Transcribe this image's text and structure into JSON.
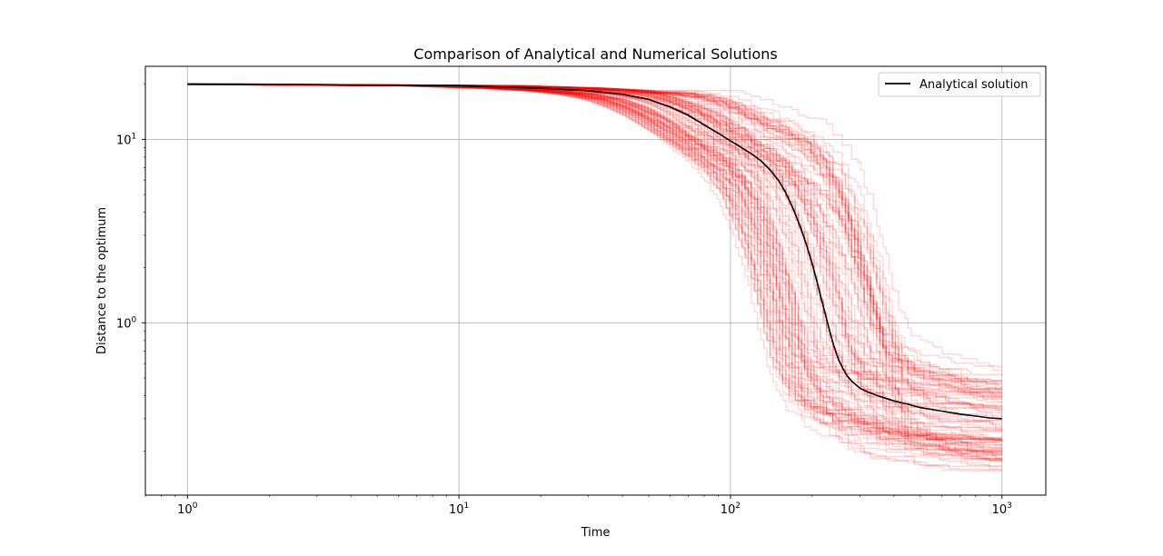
{
  "chart_data": {
    "type": "line",
    "title": "Comparison of Analytical and Numerical Solutions",
    "xlabel": "Time",
    "ylabel": "Distance to the optimum",
    "xscale": "log",
    "yscale": "log",
    "xlim": [
      0.7,
      1450
    ],
    "ylim": [
      0.115,
      25
    ],
    "x_ticks": [
      {
        "value": 1,
        "base": "10",
        "exp": "0"
      },
      {
        "value": 10,
        "base": "10",
        "exp": "1"
      },
      {
        "value": 100,
        "base": "10",
        "exp": "2"
      },
      {
        "value": 1000,
        "base": "10",
        "exp": "3"
      }
    ],
    "y_ticks": [
      {
        "value": 1,
        "base": "10",
        "exp": "0"
      },
      {
        "value": 10,
        "base": "10",
        "exp": "1"
      }
    ],
    "grid": true,
    "legend": {
      "position": "top-right",
      "entries": [
        {
          "label": "Analytical solution",
          "color": "#000000"
        }
      ]
    },
    "series": [
      {
        "name": "Analytical solution",
        "color": "#000000",
        "x": [
          1,
          10,
          20,
          30,
          40,
          50,
          60,
          70,
          80,
          90,
          100,
          110,
          120,
          130,
          140,
          150,
          160,
          170,
          180,
          190,
          200,
          210,
          220,
          230,
          240,
          250,
          260,
          270,
          280,
          300,
          320,
          350,
          400,
          450,
          500,
          600,
          700,
          800,
          900,
          1000
        ],
        "y": [
          20,
          19.6,
          19.0,
          18.4,
          17.6,
          16.5,
          15.0,
          13.5,
          12.0,
          10.8,
          9.8,
          9.0,
          8.3,
          7.6,
          6.8,
          6.0,
          5.1,
          4.2,
          3.4,
          2.7,
          2.1,
          1.6,
          1.22,
          0.95,
          0.75,
          0.63,
          0.56,
          0.51,
          0.48,
          0.44,
          0.42,
          0.4,
          0.375,
          0.36,
          0.345,
          0.33,
          0.318,
          0.31,
          0.303,
          0.3
        ]
      }
    ],
    "numerical_runs": {
      "color": "#ff0000",
      "opacity": 0.15,
      "count": 100
    }
  }
}
